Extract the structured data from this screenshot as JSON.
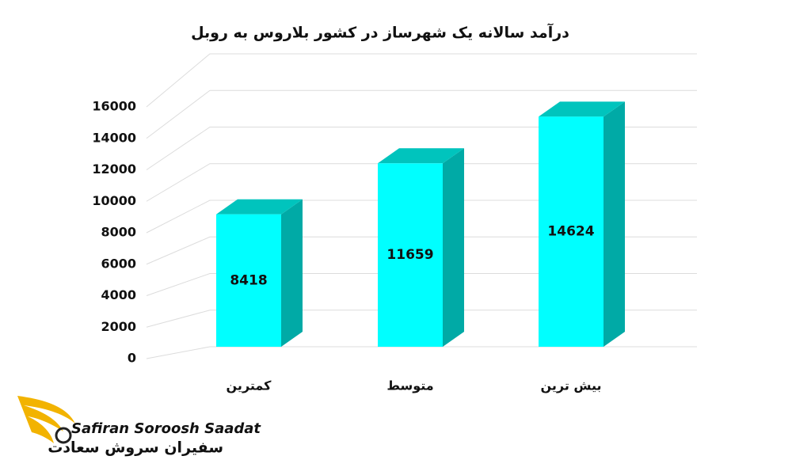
{
  "chart_data": {
    "type": "bar3d",
    "title": "درآمد سالانه یک شهرساز در کشور بلاروس به روبل",
    "categories": [
      "کمترین",
      "متوسط",
      "بیش ترین"
    ],
    "values": [
      8418,
      11659,
      14624
    ],
    "color": "#00ffff",
    "side_color": "#00aaa6",
    "top_color": "#00c4bd",
    "ylim": [
      0,
      16000
    ],
    "yticks": [
      0,
      2000,
      4000,
      6000,
      8000,
      10000,
      12000,
      14000,
      16000
    ],
    "grid": true
  },
  "logo": {
    "name_en": "Safiran Soroosh Saadat",
    "name_fa": "سفیران سروش سعادت"
  }
}
